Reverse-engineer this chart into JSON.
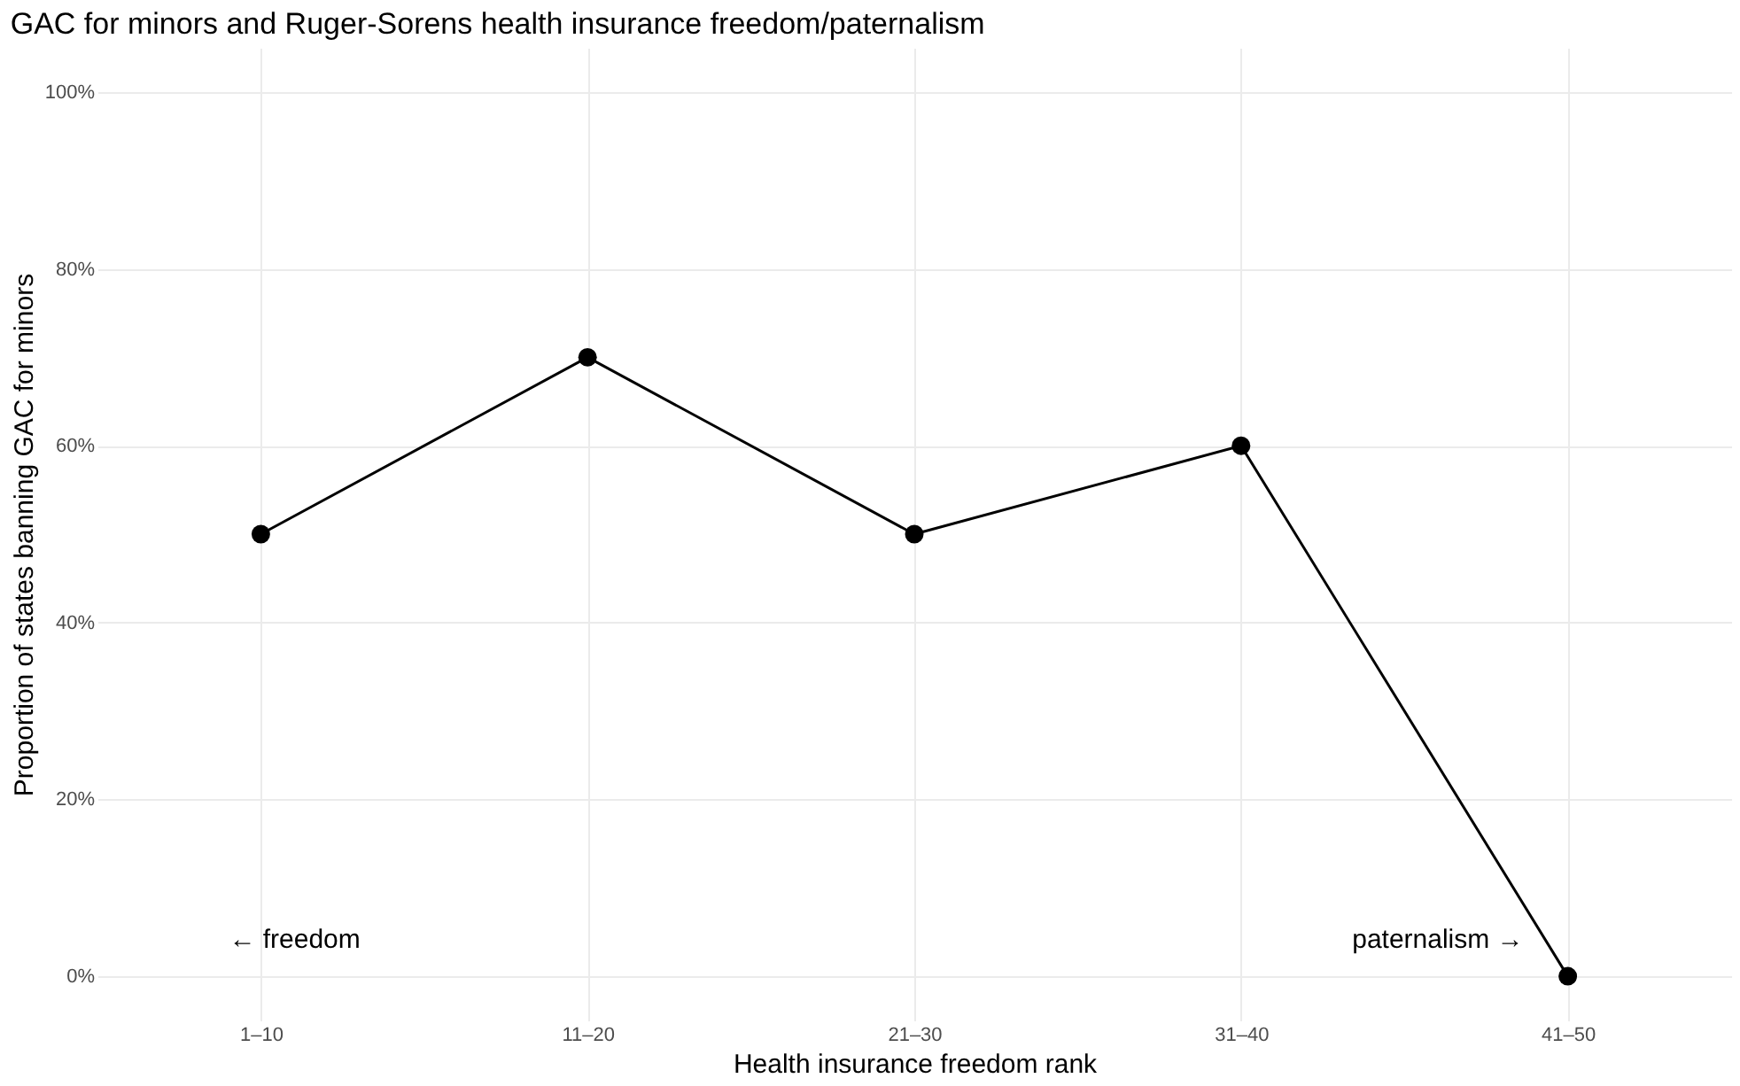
{
  "chart_data": {
    "type": "line",
    "title": "GAC for minors and Ruger-Sorens health insurance freedom/paternalism",
    "xlabel": "Health insurance freedom rank",
    "ylabel": "Proportion of states banning GAC for minors",
    "categories": [
      "1–10",
      "11–20",
      "21–30",
      "31–40",
      "41–50"
    ],
    "series": [
      {
        "color": "#000000",
        "values": [
          50,
          70,
          50,
          60,
          0
        ]
      }
    ],
    "ylim": [
      -5,
      105
    ],
    "yticks": [
      {
        "value": 0,
        "label": "0%"
      },
      {
        "value": 20,
        "label": "20%"
      },
      {
        "value": 40,
        "label": "40%"
      },
      {
        "value": 60,
        "label": "60%"
      },
      {
        "value": 80,
        "label": "80%"
      },
      {
        "value": 100,
        "label": "100%"
      }
    ],
    "annotations": [
      "← freedom",
      "paternalism →"
    ],
    "grid": true,
    "marker": "circle",
    "line_style": "solid"
  }
}
